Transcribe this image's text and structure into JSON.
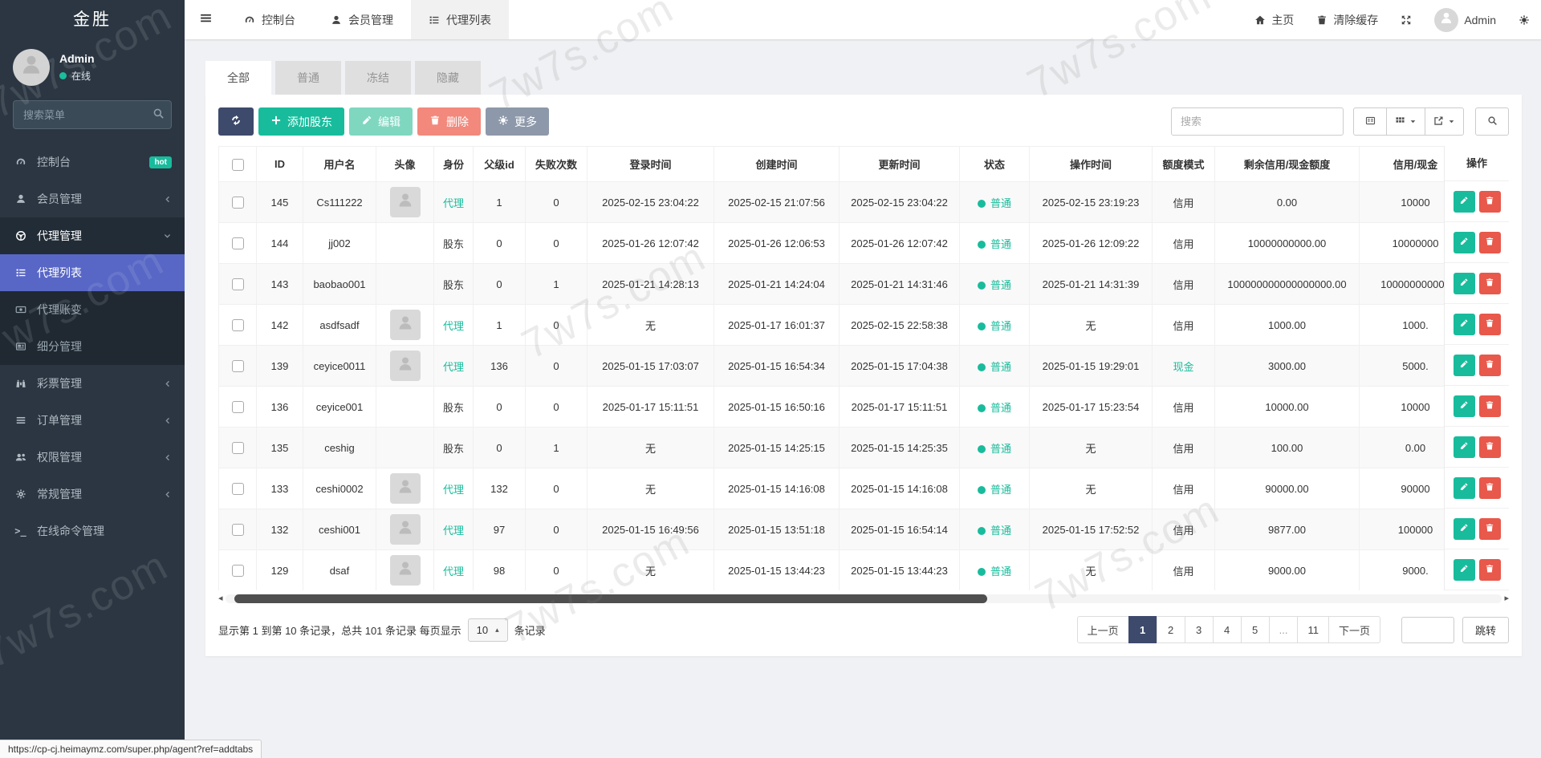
{
  "colors": {
    "accent_green": "#18bc9c",
    "danger_red": "#e8584b",
    "primary_navy": "#3e4a6b",
    "active_blue": "#5867c6",
    "sidebar_bg": "#2b3642",
    "edit_muted_green": "#7fd7c0",
    "delete_salmon": "#f2897c",
    "more_gray": "#8d99aa"
  },
  "watermark": {
    "text": "7w7s.com"
  },
  "sidebar": {
    "logo": "金胜",
    "user": {
      "name": "Admin",
      "status": "在线"
    },
    "search_placeholder": "搜索菜单",
    "items": [
      {
        "key": "console",
        "label": "控制台",
        "icon": "dashboard-icon",
        "badge": "hot"
      },
      {
        "key": "member",
        "label": "会员管理",
        "icon": "user-icon",
        "chevron": "left"
      },
      {
        "key": "agent",
        "label": "代理管理",
        "icon": "agent-icon",
        "chevron": "down",
        "open": true,
        "children": [
          {
            "key": "agent-list",
            "label": "代理列表",
            "icon": "list-icon",
            "active": true
          },
          {
            "key": "agent-change",
            "label": "代理账变",
            "icon": "money-icon"
          },
          {
            "key": "segment",
            "label": "细分管理",
            "icon": "news-icon"
          }
        ]
      },
      {
        "key": "lottery",
        "label": "彩票管理",
        "icon": "binoculars-icon",
        "chevron": "left"
      },
      {
        "key": "order",
        "label": "订单管理",
        "icon": "bars-icon",
        "chevron": "left"
      },
      {
        "key": "permission",
        "label": "权限管理",
        "icon": "users-icon",
        "chevron": "left"
      },
      {
        "key": "general",
        "label": "常规管理",
        "icon": "gears-icon",
        "chevron": "left"
      },
      {
        "key": "online-command",
        "label": "在线命令管理",
        "icon": "terminal-icon"
      }
    ]
  },
  "topbar": {
    "tabs": [
      {
        "key": "console",
        "label": "控制台",
        "icon": "dashboard-icon"
      },
      {
        "key": "member",
        "label": "会员管理",
        "icon": "user-icon"
      },
      {
        "key": "agent-list",
        "label": "代理列表",
        "icon": "list-icon",
        "active": true
      }
    ],
    "right": [
      {
        "key": "home",
        "label": "主页",
        "icon": "home-icon"
      },
      {
        "key": "clear-cache",
        "label": "清除缓存",
        "icon": "trash-icon"
      },
      {
        "key": "fullscreen",
        "icon": "expand-icon"
      },
      {
        "key": "admin-user",
        "label": "Admin",
        "avatar": true
      },
      {
        "key": "settings",
        "icon": "gears-icon"
      }
    ]
  },
  "panel": {
    "tabs": [
      {
        "key": "all",
        "label": "全部",
        "active": true
      },
      {
        "key": "normal",
        "label": "普通"
      },
      {
        "key": "frozen",
        "label": "冻结"
      },
      {
        "key": "hidden",
        "label": "隐藏"
      }
    ],
    "toolbar": {
      "add_label": "添加股东",
      "edit_label": "编辑",
      "delete_label": "删除",
      "more_label": "更多",
      "search_placeholder": "搜索"
    },
    "table": {
      "columns": [
        "ID",
        "用户名",
        "头像",
        "身份",
        "父级id",
        "失败次数",
        "登录时间",
        "创建时间",
        "更新时间",
        "状态",
        "操作时间",
        "额度模式",
        "剩余信用/现金额度",
        "信用/现金"
      ],
      "op_column": "操作",
      "rows": [
        {
          "id": "145",
          "user": "Cs111222",
          "avatar": true,
          "role": "代理",
          "parent": "1",
          "fails": "0",
          "login": "2025-02-15 23:04:22",
          "created": "2025-02-15 21:07:56",
          "updated": "2025-02-15 23:04:22",
          "status": "普通",
          "optime": "2025-02-15 23:19:23",
          "mode": "信用",
          "credit": "0.00",
          "cash": "10000"
        },
        {
          "id": "144",
          "user": "jj002",
          "avatar": false,
          "role": "股东",
          "parent": "0",
          "fails": "0",
          "login": "2025-01-26 12:07:42",
          "created": "2025-01-26 12:06:53",
          "updated": "2025-01-26 12:07:42",
          "status": "普通",
          "optime": "2025-01-26 12:09:22",
          "mode": "信用",
          "credit": "10000000000.00",
          "cash": "10000000"
        },
        {
          "id": "143",
          "user": "baobao001",
          "avatar": false,
          "role": "股东",
          "parent": "0",
          "fails": "1",
          "login": "2025-01-21 14:28:13",
          "created": "2025-01-21 14:24:04",
          "updated": "2025-01-21 14:31:46",
          "status": "普通",
          "optime": "2025-01-21 14:31:39",
          "mode": "信用",
          "credit": "100000000000000000.00",
          "cash": "100000000000"
        },
        {
          "id": "142",
          "user": "asdfsadf",
          "avatar": true,
          "role": "代理",
          "parent": "1",
          "fails": "0",
          "login": "无",
          "created": "2025-01-17 16:01:37",
          "updated": "2025-02-15 22:58:38",
          "status": "普通",
          "optime": "无",
          "mode": "信用",
          "credit": "1000.00",
          "cash": "1000."
        },
        {
          "id": "139",
          "user": "ceyice0011",
          "avatar": true,
          "role": "代理",
          "parent": "136",
          "fails": "0",
          "login": "2025-01-15 17:03:07",
          "created": "2025-01-15 16:54:34",
          "updated": "2025-01-15 17:04:38",
          "status": "普通",
          "optime": "2025-01-15 19:29:01",
          "mode": "现金",
          "credit": "3000.00",
          "cash": "5000."
        },
        {
          "id": "136",
          "user": "ceyice001",
          "avatar": false,
          "role": "股东",
          "parent": "0",
          "fails": "0",
          "login": "2025-01-17 15:11:51",
          "created": "2025-01-15 16:50:16",
          "updated": "2025-01-17 15:11:51",
          "status": "普通",
          "optime": "2025-01-17 15:23:54",
          "mode": "信用",
          "credit": "10000.00",
          "cash": "10000"
        },
        {
          "id": "135",
          "user": "ceshig",
          "avatar": false,
          "role": "股东",
          "parent": "0",
          "fails": "1",
          "login": "无",
          "created": "2025-01-15 14:25:15",
          "updated": "2025-01-15 14:25:35",
          "status": "普通",
          "optime": "无",
          "mode": "信用",
          "credit": "100.00",
          "cash": "0.00"
        },
        {
          "id": "133",
          "user": "ceshi0002",
          "avatar": true,
          "role": "代理",
          "parent": "132",
          "fails": "0",
          "login": "无",
          "created": "2025-01-15 14:16:08",
          "updated": "2025-01-15 14:16:08",
          "status": "普通",
          "optime": "无",
          "mode": "信用",
          "credit": "90000.00",
          "cash": "90000"
        },
        {
          "id": "132",
          "user": "ceshi001",
          "avatar": true,
          "role": "代理",
          "parent": "97",
          "fails": "0",
          "login": "2025-01-15 16:49:56",
          "created": "2025-01-15 13:51:18",
          "updated": "2025-01-15 16:54:14",
          "status": "普通",
          "optime": "2025-01-15 17:52:52",
          "mode": "信用",
          "credit": "9877.00",
          "cash": "100000"
        },
        {
          "id": "129",
          "user": "dsaf",
          "avatar": true,
          "role": "代理",
          "parent": "98",
          "fails": "0",
          "login": "无",
          "created": "2025-01-15 13:44:23",
          "updated": "2025-01-15 13:44:23",
          "status": "普通",
          "optime": "无",
          "mode": "信用",
          "credit": "9000.00",
          "cash": "9000."
        }
      ]
    },
    "pagination": {
      "summary_prefix": "显示第 1 到第 10 条记录，总共 101 条记录 每页显示",
      "page_size": "10",
      "summary_suffix": "条记录",
      "pages": [
        "上一页",
        "1",
        "2",
        "3",
        "4",
        "5",
        "...",
        "11",
        "下一页"
      ],
      "active_page": "1",
      "jump_label": "跳转"
    }
  },
  "statusbar": {
    "url": "https://cp-cj.heimaymz.com/super.php/agent?ref=addtabs"
  }
}
